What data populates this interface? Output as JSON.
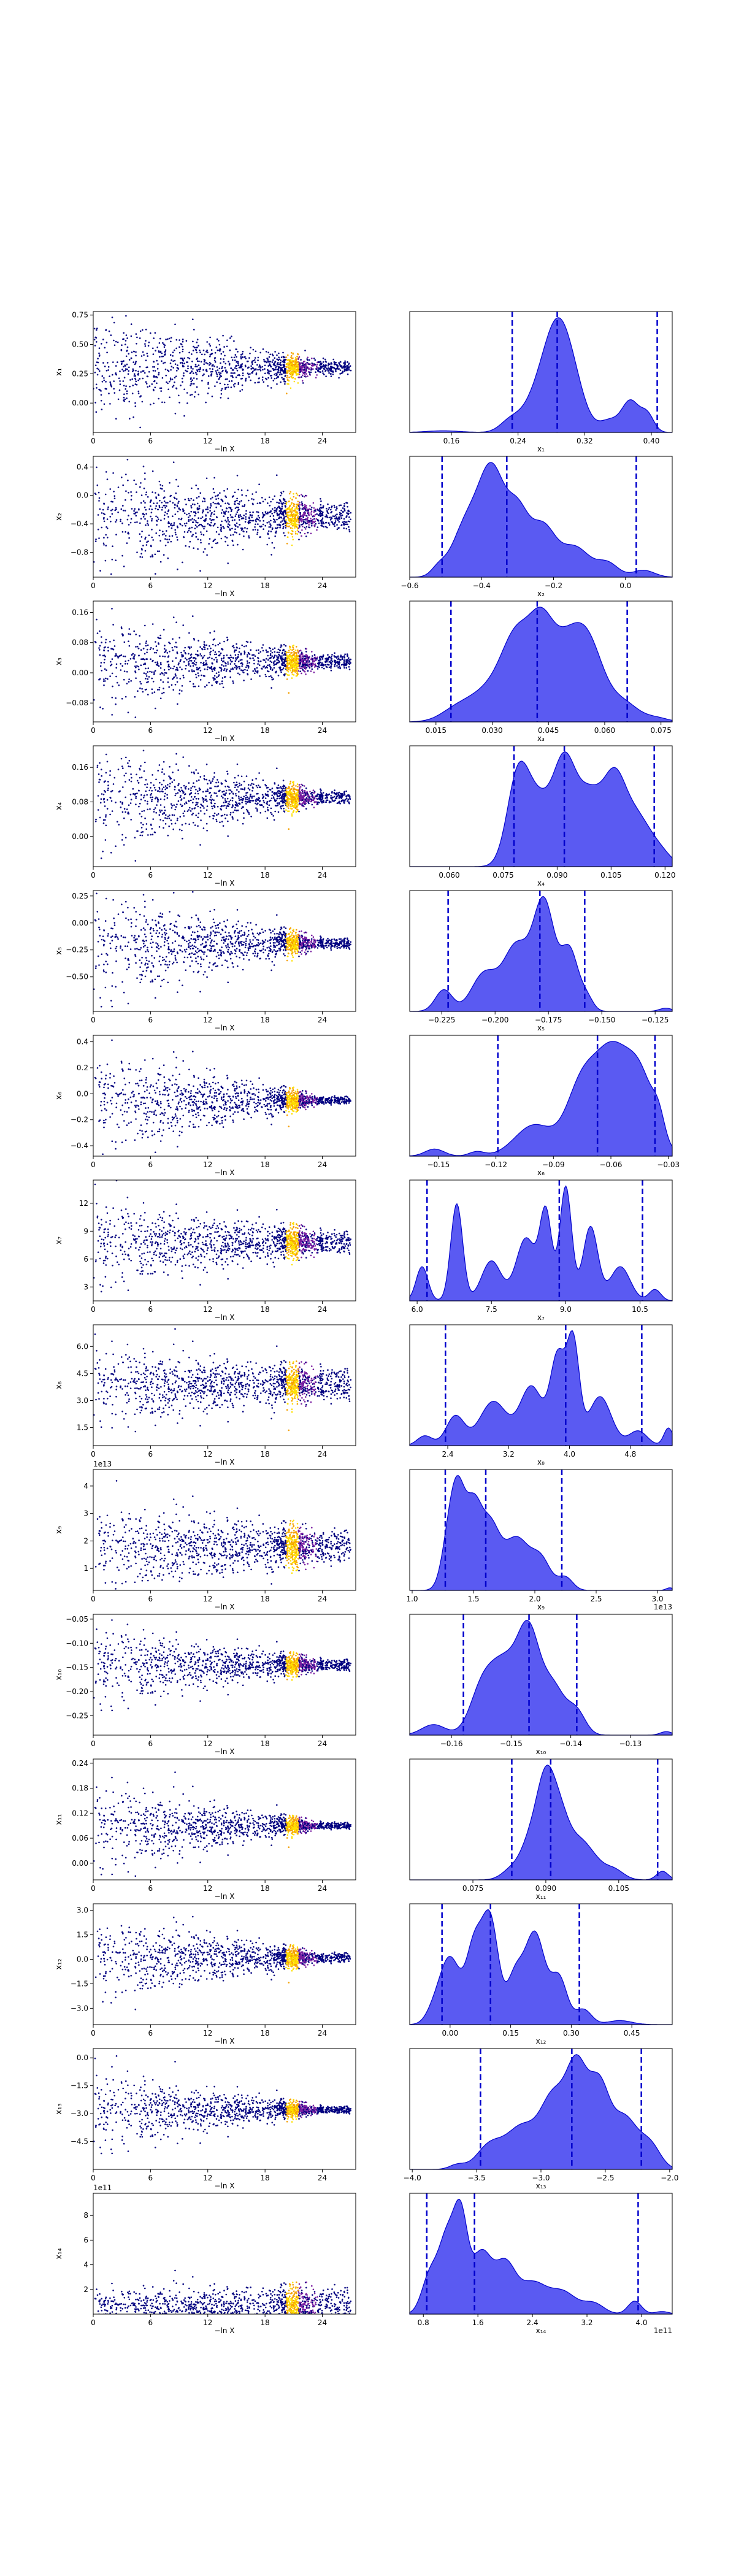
{
  "colors": {
    "kde_fill": "#5a5af2",
    "kde_edge": "#0000cc",
    "quantile_line": "#0000cc",
    "scatter_low": "#000080",
    "scatter_mid": "#7a1fa2",
    "scatter_high": "#f5a000",
    "scatter_peak": "#ffe000"
  },
  "chart_data": [
    {
      "type": "scatter",
      "panel": 1,
      "xlabel": "−ln X",
      "ylabel": "x₁",
      "xticks": [
        "0",
        "6",
        "12",
        "18",
        "24"
      ],
      "xlim": [
        0,
        27.5
      ],
      "yticks": [
        "0.00",
        "0.25",
        "0.50",
        "0.75"
      ],
      "ylim": [
        -0.25,
        0.78
      ],
      "center": 0.3,
      "spread0": 0.42,
      "spread1": 0.06,
      "offset": ""
    },
    {
      "type": "area",
      "panel": 1,
      "xlabel": "x₁",
      "xticks": [
        "0.16",
        "0.24",
        "0.32",
        "0.40"
      ],
      "xlim": [
        0.11,
        0.425
      ],
      "quantiles": [
        0.233,
        0.287,
        0.407
      ],
      "offset": "",
      "peaks": [
        [
          0.15,
          0.02,
          0.02
        ],
        [
          0.23,
          0.12,
          0.012
        ],
        [
          0.27,
          0.55,
          0.02
        ],
        [
          0.29,
          0.98,
          0.016
        ],
        [
          0.31,
          0.3,
          0.014
        ],
        [
          0.35,
          0.15,
          0.012
        ],
        [
          0.375,
          0.38,
          0.01
        ],
        [
          0.395,
          0.22,
          0.008
        ]
      ]
    },
    {
      "type": "scatter",
      "panel": 2,
      "xlabel": "−ln X",
      "ylabel": "x₂",
      "xticks": [
        "0",
        "6",
        "12",
        "18",
        "24"
      ],
      "xlim": [
        0,
        27.5
      ],
      "yticks": [
        "−0.8",
        "−0.4",
        "0.0",
        "0.4"
      ],
      "ylim": [
        -1.15,
        0.55
      ],
      "center": -0.3,
      "spread0": 0.75,
      "spread1": 0.2,
      "offset": ""
    },
    {
      "type": "area",
      "panel": 2,
      "xlabel": "x₂",
      "xticks": [
        "−0.6",
        "−0.4",
        "−0.2",
        "0.0"
      ],
      "xlim": [
        -0.6,
        0.13
      ],
      "quantiles": [
        -0.51,
        -0.33,
        0.03
      ],
      "offset": "",
      "peaks": [
        [
          -0.52,
          0.08,
          0.02
        ],
        [
          -0.44,
          0.55,
          0.04
        ],
        [
          -0.37,
          1.0,
          0.035
        ],
        [
          -0.3,
          0.6,
          0.03
        ],
        [
          -0.23,
          0.5,
          0.035
        ],
        [
          -0.14,
          0.3,
          0.04
        ],
        [
          -0.05,
          0.14,
          0.03
        ],
        [
          0.05,
          0.07,
          0.03
        ]
      ]
    },
    {
      "type": "scatter",
      "panel": 3,
      "xlabel": "−ln X",
      "ylabel": "x₃",
      "xticks": [
        "0",
        "6",
        "12",
        "18",
        "24"
      ],
      "xlim": [
        0,
        27.5
      ],
      "yticks": [
        "−0.08",
        "0.00",
        "0.08",
        "0.16"
      ],
      "ylim": [
        -0.13,
        0.19
      ],
      "center": 0.03,
      "spread0": 0.12,
      "spread1": 0.02,
      "offset": ""
    },
    {
      "type": "area",
      "panel": 3,
      "xlabel": "x₃",
      "xticks": [
        "0.015",
        "0.030",
        "0.045",
        "0.060",
        "0.075"
      ],
      "xlim": [
        0.008,
        0.078
      ],
      "quantiles": [
        0.019,
        0.042,
        0.066
      ],
      "offset": "",
      "peaks": [
        [
          0.02,
          0.12,
          0.004
        ],
        [
          0.03,
          0.45,
          0.006
        ],
        [
          0.037,
          0.95,
          0.004
        ],
        [
          0.043,
          0.7,
          0.003
        ],
        [
          0.049,
          1.0,
          0.005
        ],
        [
          0.056,
          0.8,
          0.004
        ],
        [
          0.065,
          0.25,
          0.004
        ],
        [
          0.074,
          0.05,
          0.003
        ]
      ]
    },
    {
      "type": "scatter",
      "panel": 4,
      "xlabel": "−ln X",
      "ylabel": "x₄",
      "xticks": [
        "0",
        "6",
        "12",
        "18",
        "24"
      ],
      "xlim": [
        0,
        27.5
      ],
      "yticks": [
        "0.00",
        "0.08",
        "0.16"
      ],
      "ylim": [
        -0.07,
        0.21
      ],
      "center": 0.09,
      "spread0": 0.12,
      "spread1": 0.015,
      "offset": ""
    },
    {
      "type": "area",
      "panel": 4,
      "xlabel": "x₄",
      "xticks": [
        "0.060",
        "0.075",
        "0.090",
        "0.105",
        "0.120"
      ],
      "xlim": [
        0.049,
        0.122
      ],
      "quantiles": [
        0.078,
        0.092,
        0.117
      ],
      "offset": "",
      "peaks": [
        [
          0.079,
          0.9,
          0.003
        ],
        [
          0.085,
          0.7,
          0.004
        ],
        [
          0.092,
          0.95,
          0.003
        ],
        [
          0.099,
          0.8,
          0.004
        ],
        [
          0.106,
          0.75,
          0.003
        ],
        [
          0.112,
          0.55,
          0.004
        ],
        [
          0.119,
          0.12,
          0.003
        ]
      ]
    },
    {
      "type": "scatter",
      "panel": 5,
      "xlabel": "−ln X",
      "ylabel": "x₅",
      "xticks": [
        "0",
        "6",
        "12",
        "18",
        "24"
      ],
      "xlim": [
        0,
        27.5
      ],
      "yticks": [
        "−0.50",
        "−0.25",
        "0.00",
        "0.25"
      ],
      "ylim": [
        -0.82,
        0.3
      ],
      "center": -0.19,
      "spread0": 0.5,
      "spread1": 0.05,
      "offset": ""
    },
    {
      "type": "area",
      "panel": 5,
      "xlabel": "x₅",
      "xticks": [
        "−0.225",
        "−0.200",
        "−0.175",
        "−0.150",
        "−0.125"
      ],
      "xlim": [
        -0.24,
        -0.117
      ],
      "quantiles": [
        -0.222,
        -0.179,
        -0.158
      ],
      "offset": "",
      "peaks": [
        [
          -0.224,
          0.2,
          0.004
        ],
        [
          -0.205,
          0.35,
          0.006
        ],
        [
          -0.19,
          0.6,
          0.006
        ],
        [
          -0.177,
          1.0,
          0.005
        ],
        [
          -0.165,
          0.55,
          0.004
        ],
        [
          -0.157,
          0.12,
          0.003
        ],
        [
          -0.12,
          0.03,
          0.003
        ]
      ]
    },
    {
      "type": "scatter",
      "panel": 6,
      "xlabel": "−ln X",
      "ylabel": "x₆",
      "xticks": [
        "0",
        "6",
        "12",
        "18",
        "24"
      ],
      "xlim": [
        0,
        27.5
      ],
      "yticks": [
        "−0.4",
        "−0.2",
        "0.0",
        "0.2",
        "0.4"
      ],
      "ylim": [
        -0.48,
        0.45
      ],
      "center": -0.05,
      "spread0": 0.4,
      "spread1": 0.03,
      "offset": ""
    },
    {
      "type": "area",
      "panel": 6,
      "xlabel": "x₆",
      "xticks": [
        "−0.15",
        "−0.12",
        "−0.09",
        "−0.06",
        "−0.03"
      ],
      "xlim": [
        -0.165,
        -0.028
      ],
      "quantiles": [
        -0.119,
        -0.067,
        -0.037
      ],
      "offset": "",
      "peaks": [
        [
          -0.152,
          0.08,
          0.005
        ],
        [
          -0.13,
          0.05,
          0.004
        ],
        [
          -0.1,
          0.35,
          0.01
        ],
        [
          -0.075,
          0.8,
          0.008
        ],
        [
          -0.06,
          1.0,
          0.008
        ],
        [
          -0.045,
          0.9,
          0.008
        ],
        [
          -0.035,
          0.2,
          0.003
        ]
      ]
    },
    {
      "type": "scatter",
      "panel": 7,
      "xlabel": "−ln X",
      "ylabel": "x₇",
      "xticks": [
        "0",
        "6",
        "12",
        "18",
        "24"
      ],
      "xlim": [
        0,
        27.5
      ],
      "yticks": [
        "3",
        "6",
        "9",
        "12"
      ],
      "ylim": [
        1.5,
        14.5
      ],
      "center": 7.8,
      "spread0": 4.5,
      "spread1": 1.2,
      "offset": ""
    },
    {
      "type": "area",
      "panel": 7,
      "xlabel": "x₇",
      "xticks": [
        "6.0",
        "7.5",
        "9.0",
        "10.5"
      ],
      "xlim": [
        5.85,
        11.15
      ],
      "quantiles": [
        6.2,
        8.87,
        10.55
      ],
      "offset": "",
      "peaks": [
        [
          6.1,
          0.3,
          0.12
        ],
        [
          6.8,
          0.85,
          0.12
        ],
        [
          7.5,
          0.35,
          0.2
        ],
        [
          8.2,
          0.55,
          0.2
        ],
        [
          8.6,
          0.75,
          0.12
        ],
        [
          9.0,
          1.0,
          0.12
        ],
        [
          9.5,
          0.65,
          0.15
        ],
        [
          10.1,
          0.3,
          0.2
        ],
        [
          10.8,
          0.1,
          0.12
        ]
      ]
    },
    {
      "type": "scatter",
      "panel": 8,
      "xlabel": "−ln X",
      "ylabel": "x₈",
      "xticks": [
        "0",
        "6",
        "12",
        "18",
        "24"
      ],
      "xlim": [
        0,
        27.5
      ],
      "yticks": [
        "1.5",
        "3.0",
        "4.5",
        "6.0"
      ],
      "ylim": [
        0.5,
        7.2
      ],
      "center": 3.9,
      "spread0": 2.0,
      "spread1": 0.9,
      "offset": ""
    },
    {
      "type": "area",
      "panel": 8,
      "xlabel": "x₈",
      "xticks": [
        "2.4",
        "3.2",
        "4.0",
        "4.8"
      ],
      "xlim": [
        1.9,
        5.35
      ],
      "quantiles": [
        2.37,
        3.95,
        4.95
      ],
      "offset": "",
      "peaks": [
        [
          2.1,
          0.1,
          0.1
        ],
        [
          2.5,
          0.3,
          0.12
        ],
        [
          3.0,
          0.45,
          0.18
        ],
        [
          3.5,
          0.6,
          0.15
        ],
        [
          3.85,
          0.9,
          0.1
        ],
        [
          4.05,
          1.0,
          0.08
        ],
        [
          4.4,
          0.5,
          0.15
        ],
        [
          4.9,
          0.15,
          0.12
        ],
        [
          5.3,
          0.18,
          0.06
        ]
      ]
    },
    {
      "type": "scatter",
      "panel": 9,
      "xlabel": "−ln X",
      "ylabel": "x₉",
      "xticks": [
        "0",
        "6",
        "12",
        "18",
        "24"
      ],
      "xlim": [
        0,
        27.5
      ],
      "yticks": [
        "1",
        "2",
        "3",
        "4"
      ],
      "ylim": [
        0.2,
        4.6
      ],
      "center": 1.8,
      "spread0": 1.6,
      "spread1": 0.6,
      "offset": "1e13"
    },
    {
      "type": "area",
      "panel": 9,
      "xlabel": "x₉",
      "xticks": [
        "1.0",
        "1.5",
        "2.0",
        "2.5",
        "3.0"
      ],
      "xlim": [
        0.98,
        3.12
      ],
      "quantiles": [
        1.27,
        1.6,
        2.22
      ],
      "offset": "1e13",
      "peaks": [
        [
          1.3,
          0.55,
          0.06
        ],
        [
          1.38,
          1.0,
          0.06
        ],
        [
          1.5,
          0.8,
          0.06
        ],
        [
          1.63,
          0.75,
          0.08
        ],
        [
          1.85,
          0.6,
          0.1
        ],
        [
          2.05,
          0.35,
          0.08
        ],
        [
          2.25,
          0.15,
          0.06
        ],
        [
          3.1,
          0.03,
          0.03
        ]
      ]
    },
    {
      "type": "scatter",
      "panel": 10,
      "xlabel": "−ln X",
      "ylabel": "x₁₀",
      "xticks": [
        "0",
        "6",
        "12",
        "18",
        "24"
      ],
      "xlim": [
        0,
        27.5
      ],
      "yticks": [
        "−0.25",
        "−0.20",
        "−0.15",
        "−0.10",
        "−0.05"
      ],
      "ylim": [
        -0.29,
        -0.04
      ],
      "center": -0.145,
      "spread0": 0.08,
      "spread1": 0.012,
      "offset": ""
    },
    {
      "type": "area",
      "panel": 10,
      "xlabel": "x₁₀",
      "xticks": [
        "−0.16",
        "−0.15",
        "−0.14",
        "−0.13"
      ],
      "xlim": [
        -0.167,
        -0.123
      ],
      "quantiles": [
        -0.158,
        -0.147,
        -0.139
      ],
      "offset": "",
      "peaks": [
        [
          -0.163,
          0.12,
          0.002
        ],
        [
          -0.155,
          0.45,
          0.002
        ],
        [
          -0.151,
          0.8,
          0.0025
        ],
        [
          -0.147,
          1.0,
          0.0018
        ],
        [
          -0.143,
          0.55,
          0.002
        ],
        [
          -0.139,
          0.25,
          0.0015
        ],
        [
          -0.124,
          0.04,
          0.001
        ]
      ]
    },
    {
      "type": "scatter",
      "panel": 11,
      "xlabel": "−ln X",
      "ylabel": "x₁₁",
      "xticks": [
        "0",
        "6",
        "12",
        "18",
        "24"
      ],
      "xlim": [
        0,
        27.5
      ],
      "yticks": [
        "0.00",
        "0.06",
        "0.12",
        "0.18",
        "0.24"
      ],
      "ylim": [
        -0.04,
        0.25
      ],
      "center": 0.09,
      "spread0": 0.1,
      "spread1": 0.008,
      "offset": ""
    },
    {
      "type": "area",
      "panel": 11,
      "xlabel": "x₁₁",
      "xticks": [
        "0.075",
        "0.090",
        "0.105"
      ],
      "xlim": [
        0.062,
        0.116
      ],
      "quantiles": [
        0.083,
        0.091,
        0.113
      ],
      "offset": "",
      "peaks": [
        [
          0.083,
          0.12,
          0.002
        ],
        [
          0.087,
          0.45,
          0.002
        ],
        [
          0.09,
          0.95,
          0.0018
        ],
        [
          0.093,
          0.7,
          0.002
        ],
        [
          0.097,
          0.35,
          0.002
        ],
        [
          0.1,
          0.18,
          0.002
        ],
        [
          0.104,
          0.12,
          0.002
        ],
        [
          0.114,
          0.1,
          0.0012
        ]
      ]
    },
    {
      "type": "scatter",
      "panel": 12,
      "xlabel": "−ln X",
      "ylabel": "x₁₂",
      "xticks": [
        "0",
        "6",
        "12",
        "18",
        "24"
      ],
      "xlim": [
        0,
        27.5
      ],
      "yticks": [
        "−3.0",
        "−1.5",
        "0.0",
        "1.5",
        "3.0"
      ],
      "ylim": [
        -4.0,
        3.4
      ],
      "center": 0.1,
      "spread0": 2.6,
      "spread1": 0.3,
      "offset": ""
    },
    {
      "type": "area",
      "panel": 12,
      "xlabel": "x₁₂",
      "xticks": [
        "0.00",
        "0.15",
        "0.30",
        "0.45"
      ],
      "xlim": [
        -0.1,
        0.55
      ],
      "quantiles": [
        -0.02,
        0.1,
        0.32
      ],
      "offset": "",
      "peaks": [
        [
          -0.04,
          0.12,
          0.02
        ],
        [
          0.0,
          0.65,
          0.025
        ],
        [
          0.06,
          0.75,
          0.02
        ],
        [
          0.1,
          1.0,
          0.02
        ],
        [
          0.16,
          0.45,
          0.02
        ],
        [
          0.21,
          0.9,
          0.025
        ],
        [
          0.27,
          0.45,
          0.02
        ],
        [
          0.33,
          0.15,
          0.02
        ],
        [
          0.42,
          0.04,
          0.03
        ]
      ]
    },
    {
      "type": "scatter",
      "panel": 13,
      "xlabel": "−ln X",
      "ylabel": "x₁₃",
      "xticks": [
        "0",
        "6",
        "12",
        "18",
        "24"
      ],
      "xlim": [
        0,
        27.5
      ],
      "yticks": [
        "−4.5",
        "−3.0",
        "−1.5",
        "0.0"
      ],
      "ylim": [
        -6.0,
        0.5
      ],
      "center": -2.8,
      "spread0": 2.0,
      "spread1": 0.2,
      "offset": ""
    },
    {
      "type": "area",
      "panel": 13,
      "xlabel": "x₁₃",
      "xticks": [
        "−4.0",
        "−3.5",
        "−3.0",
        "−2.5",
        "−2.0"
      ],
      "xlim": [
        -4.02,
        -1.98
      ],
      "quantiles": [
        -3.47,
        -2.76,
        -2.22
      ],
      "offset": "",
      "peaks": [
        [
          -3.65,
          0.05,
          0.06
        ],
        [
          -3.4,
          0.25,
          0.1
        ],
        [
          -3.15,
          0.45,
          0.12
        ],
        [
          -2.9,
          0.75,
          0.1
        ],
        [
          -2.72,
          1.0,
          0.08
        ],
        [
          -2.55,
          0.85,
          0.08
        ],
        [
          -2.35,
          0.55,
          0.1
        ],
        [
          -2.15,
          0.25,
          0.08
        ]
      ]
    },
    {
      "type": "scatter",
      "panel": 14,
      "xlabel": "−ln X",
      "ylabel": "x₁₄",
      "xticks": [
        "0",
        "6",
        "12",
        "18",
        "24"
      ],
      "xlim": [
        0,
        27.5
      ],
      "yticks": [
        "2",
        "4",
        "6",
        "8"
      ],
      "ylim": [
        0,
        9.8
      ],
      "center": 0.6,
      "spread0": 1.5,
      "spread1": 1.6,
      "offset": "1e11"
    },
    {
      "type": "area",
      "panel": 14,
      "xlabel": "x₁₄",
      "xticks": [
        "0.8",
        "1.6",
        "2.4",
        "3.2",
        "4.0"
      ],
      "xlim": [
        0.6,
        4.45
      ],
      "quantiles": [
        0.85,
        1.55,
        3.95
      ],
      "offset": "1e11",
      "peaks": [
        [
          0.9,
          0.45,
          0.12
        ],
        [
          1.15,
          0.85,
          0.12
        ],
        [
          1.35,
          1.0,
          0.1
        ],
        [
          1.65,
          0.7,
          0.15
        ],
        [
          2.0,
          0.55,
          0.15
        ],
        [
          2.4,
          0.35,
          0.2
        ],
        [
          2.85,
          0.25,
          0.2
        ],
        [
          3.3,
          0.12,
          0.15
        ],
        [
          3.9,
          0.15,
          0.1
        ],
        [
          4.3,
          0.03,
          0.1
        ]
      ]
    }
  ]
}
